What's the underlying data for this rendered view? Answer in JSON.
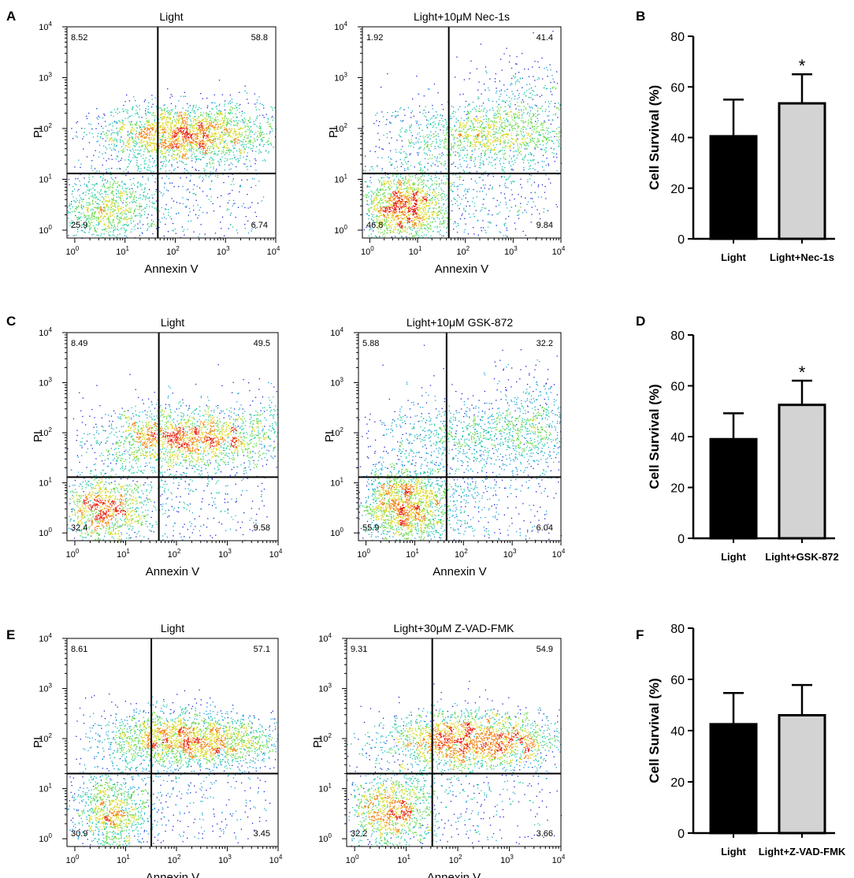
{
  "figure": {
    "colors": {
      "axis": "#000000",
      "bar_light": "#000000",
      "bar_treated": "#d3d3d3",
      "dot_low": "#1a22d8",
      "dot_mid": "#18c8a0",
      "dot_high": "#e82010"
    }
  },
  "chart_data": [
    {
      "panel": "A",
      "type": "scatter",
      "subtype": "flow-cytometry-density",
      "title": "Light",
      "xlabel": "Annexin V",
      "ylabel": "PI",
      "x_scale": "log",
      "y_scale": "log",
      "xlim": [
        0.7,
        10000
      ],
      "ylim": [
        0.7,
        10000
      ],
      "x_ticks": [
        {
          "base": "10",
          "exp": "0"
        },
        {
          "base": "10",
          "exp": "1"
        },
        {
          "base": "10",
          "exp": "2"
        },
        {
          "base": "10",
          "exp": "3"
        },
        {
          "base": "10",
          "exp": "4"
        }
      ],
      "y_ticks": [
        {
          "base": "10",
          "exp": "0"
        },
        {
          "base": "10",
          "exp": "1"
        },
        {
          "base": "10",
          "exp": "2"
        },
        {
          "base": "10",
          "exp": "3"
        },
        {
          "base": "10",
          "exp": "4"
        }
      ],
      "gate": {
        "x": 45,
        "y": 13
      },
      "quadrants": {
        "upper_left": "8.52",
        "upper_right": "58.8",
        "lower_left": "25.9",
        "lower_right": "6.74"
      },
      "populations": [
        {
          "cx": 4,
          "cy": 2.5,
          "sx": 0.22,
          "sy": 0.16,
          "weight": 0.25
        },
        {
          "cx": 60,
          "cy": 80,
          "sx": 0.3,
          "sy": 0.14,
          "weight": 0.3
        },
        {
          "cx": 250,
          "cy": 75,
          "sx": 0.35,
          "sy": 0.13,
          "weight": 0.25
        },
        {
          "cx": 1500,
          "cy": 85,
          "sx": 0.25,
          "sy": 0.14,
          "weight": 0.12
        },
        {
          "cx": 100,
          "cy": 3,
          "sx": 0.4,
          "sy": 0.3,
          "weight": 0.08
        }
      ]
    },
    {
      "panel": "A2",
      "type": "scatter",
      "subtype": "flow-cytometry-density",
      "title": "Light+10μM Nec-1s",
      "xlabel": "Annexin V",
      "ylabel": "PI",
      "x_scale": "log",
      "y_scale": "log",
      "xlim": [
        0.7,
        10000
      ],
      "ylim": [
        0.7,
        10000
      ],
      "x_ticks": [
        {
          "base": "10",
          "exp": "0"
        },
        {
          "base": "10",
          "exp": "1"
        },
        {
          "base": "10",
          "exp": "2"
        },
        {
          "base": "10",
          "exp": "3"
        },
        {
          "base": "10",
          "exp": "4"
        }
      ],
      "y_ticks": [
        {
          "base": "10",
          "exp": "0"
        },
        {
          "base": "10",
          "exp": "1"
        },
        {
          "base": "10",
          "exp": "2"
        },
        {
          "base": "10",
          "exp": "3"
        },
        {
          "base": "10",
          "exp": "4"
        }
      ],
      "gate": {
        "x": 45,
        "y": 13
      },
      "quadrants": {
        "upper_left": "1.92",
        "upper_right": "41.4",
        "lower_left": "46.8",
        "lower_right": "9.84"
      },
      "populations": [
        {
          "cx": 5,
          "cy": 2.8,
          "sx": 0.2,
          "sy": 0.16,
          "weight": 0.42
        },
        {
          "cx": 200,
          "cy": 80,
          "sx": 0.4,
          "sy": 0.14,
          "weight": 0.28
        },
        {
          "cx": 2500,
          "cy": 200,
          "sx": 0.3,
          "sy": 0.28,
          "weight": 0.14
        },
        {
          "cx": 150,
          "cy": 4,
          "sx": 0.45,
          "sy": 0.35,
          "weight": 0.12
        },
        {
          "cx": 20,
          "cy": 20,
          "sx": 0.3,
          "sy": 0.35,
          "weight": 0.04
        }
      ]
    },
    {
      "panel": "B",
      "type": "bar",
      "categories": [
        "Light",
        "Light+Nec-1s"
      ],
      "values": [
        40.5,
        53.5
      ],
      "errors": [
        14.5,
        11.5
      ],
      "significance": [
        "",
        "*"
      ],
      "ylabel": "Cell Survival (%)",
      "ylim": [
        0,
        80
      ],
      "yticks": [
        "0",
        "20",
        "40",
        "60",
        "80"
      ]
    },
    {
      "panel": "C",
      "type": "scatter",
      "subtype": "flow-cytometry-density",
      "title": "Light",
      "xlabel": "Annexin V",
      "ylabel": "PI",
      "x_scale": "log",
      "y_scale": "log",
      "xlim": [
        0.7,
        10000
      ],
      "ylim": [
        0.7,
        10000
      ],
      "x_ticks": [
        {
          "base": "10",
          "exp": "0"
        },
        {
          "base": "10",
          "exp": "1"
        },
        {
          "base": "10",
          "exp": "2"
        },
        {
          "base": "10",
          "exp": "3"
        },
        {
          "base": "10",
          "exp": "4"
        }
      ],
      "y_ticks": [
        {
          "base": "10",
          "exp": "0"
        },
        {
          "base": "10",
          "exp": "1"
        },
        {
          "base": "10",
          "exp": "2"
        },
        {
          "base": "10",
          "exp": "3"
        },
        {
          "base": "10",
          "exp": "4"
        }
      ],
      "gate": {
        "x": 45,
        "y": 13
      },
      "quadrants": {
        "upper_left": "8.49",
        "upper_right": "49.5",
        "lower_left": "32.4",
        "lower_right": "9.58"
      },
      "populations": [
        {
          "cx": 4,
          "cy": 3,
          "sx": 0.2,
          "sy": 0.16,
          "weight": 0.3
        },
        {
          "cx": 70,
          "cy": 80,
          "sx": 0.3,
          "sy": 0.15,
          "weight": 0.28
        },
        {
          "cx": 400,
          "cy": 75,
          "sx": 0.4,
          "sy": 0.13,
          "weight": 0.22
        },
        {
          "cx": 3500,
          "cy": 120,
          "sx": 0.25,
          "sy": 0.2,
          "weight": 0.1
        },
        {
          "cx": 100,
          "cy": 4,
          "sx": 0.45,
          "sy": 0.35,
          "weight": 0.1
        }
      ]
    },
    {
      "panel": "C2",
      "type": "scatter",
      "subtype": "flow-cytometry-density",
      "title": "Light+10μM GSK-872",
      "xlabel": "Annexin V",
      "ylabel": "PI",
      "x_scale": "log",
      "y_scale": "log",
      "xlim": [
        0.7,
        10000
      ],
      "ylim": [
        0.7,
        10000
      ],
      "x_ticks": [
        {
          "base": "10",
          "exp": "0"
        },
        {
          "base": "10",
          "exp": "1"
        },
        {
          "base": "10",
          "exp": "2"
        },
        {
          "base": "10",
          "exp": "3"
        },
        {
          "base": "10",
          "exp": "4"
        }
      ],
      "y_ticks": [
        {
          "base": "10",
          "exp": "0"
        },
        {
          "base": "10",
          "exp": "1"
        },
        {
          "base": "10",
          "exp": "2"
        },
        {
          "base": "10",
          "exp": "3"
        },
        {
          "base": "10",
          "exp": "4"
        }
      ],
      "gate": {
        "x": 45,
        "y": 13
      },
      "quadrants": {
        "upper_left": "5.88",
        "upper_right": "32.2",
        "lower_left": "55.9",
        "lower_right": "6.04"
      },
      "populations": [
        {
          "cx": 6,
          "cy": 3.5,
          "sx": 0.22,
          "sy": 0.18,
          "weight": 0.5
        },
        {
          "cx": 300,
          "cy": 90,
          "sx": 0.45,
          "sy": 0.16,
          "weight": 0.22
        },
        {
          "cx": 3500,
          "cy": 180,
          "sx": 0.25,
          "sy": 0.25,
          "weight": 0.12
        },
        {
          "cx": 200,
          "cy": 4,
          "sx": 0.45,
          "sy": 0.35,
          "weight": 0.1
        },
        {
          "cx": 25,
          "cy": 25,
          "sx": 0.3,
          "sy": 0.35,
          "weight": 0.06
        }
      ]
    },
    {
      "panel": "D",
      "type": "bar",
      "categories": [
        "Light",
        "Light+GSK-872"
      ],
      "values": [
        39,
        52.5
      ],
      "errors": [
        10.2,
        9.5
      ],
      "significance": [
        "",
        "*"
      ],
      "ylabel": "Cell Survival (%)",
      "ylim": [
        0,
        80
      ],
      "yticks": [
        "0",
        "20",
        "40",
        "60",
        "80"
      ]
    },
    {
      "panel": "E",
      "type": "scatter",
      "subtype": "flow-cytometry-density",
      "title": "Light",
      "xlabel": "Annexin V",
      "ylabel": "PI",
      "x_scale": "log",
      "y_scale": "log",
      "xlim": [
        0.7,
        10000
      ],
      "ylim": [
        0.7,
        10000
      ],
      "x_ticks": [
        {
          "base": "10",
          "exp": "0"
        },
        {
          "base": "10",
          "exp": "1"
        },
        {
          "base": "10",
          "exp": "2"
        },
        {
          "base": "10",
          "exp": "3"
        },
        {
          "base": "10",
          "exp": "4"
        }
      ],
      "y_ticks": [
        {
          "base": "10",
          "exp": "0"
        },
        {
          "base": "10",
          "exp": "1"
        },
        {
          "base": "10",
          "exp": "2"
        },
        {
          "base": "10",
          "exp": "3"
        },
        {
          "base": "10",
          "exp": "4"
        }
      ],
      "gate": {
        "x": 32,
        "y": 20
      },
      "quadrants": {
        "upper_left": "8.61",
        "upper_right": "57.1",
        "lower_left": "30.9",
        "lower_right": "3.45"
      },
      "populations": [
        {
          "cx": 5,
          "cy": 3.2,
          "sx": 0.18,
          "sy": 0.18,
          "weight": 0.28
        },
        {
          "cx": 60,
          "cy": 110,
          "sx": 0.3,
          "sy": 0.14,
          "weight": 0.3
        },
        {
          "cx": 300,
          "cy": 90,
          "sx": 0.4,
          "sy": 0.13,
          "weight": 0.25
        },
        {
          "cx": 1200,
          "cy": 85,
          "sx": 0.25,
          "sy": 0.12,
          "weight": 0.1
        },
        {
          "cx": 80,
          "cy": 6,
          "sx": 0.45,
          "sy": 0.35,
          "weight": 0.07
        }
      ]
    },
    {
      "panel": "E2",
      "type": "scatter",
      "subtype": "flow-cytometry-density",
      "title": "Light+30μM Z-VAD-FMK",
      "xlabel": "Annexin V",
      "ylabel": "PI",
      "x_scale": "log",
      "y_scale": "log",
      "xlim": [
        0.7,
        10000
      ],
      "ylim": [
        0.7,
        10000
      ],
      "x_ticks": [
        {
          "base": "10",
          "exp": "0"
        },
        {
          "base": "10",
          "exp": "1"
        },
        {
          "base": "10",
          "exp": "2"
        },
        {
          "base": "10",
          "exp": "3"
        },
        {
          "base": "10",
          "exp": "4"
        }
      ],
      "y_ticks": [
        {
          "base": "10",
          "exp": "0"
        },
        {
          "base": "10",
          "exp": "1"
        },
        {
          "base": "10",
          "exp": "2"
        },
        {
          "base": "10",
          "exp": "3"
        },
        {
          "base": "10",
          "exp": "4"
        }
      ],
      "gate": {
        "x": 32,
        "y": 20
      },
      "quadrants": {
        "upper_left": "9.31",
        "upper_right": "54.9",
        "lower_left": "32.2",
        "lower_right": "3.66"
      },
      "populations": [
        {
          "cx": 5,
          "cy": 3.2,
          "sx": 0.18,
          "sy": 0.18,
          "weight": 0.3
        },
        {
          "cx": 70,
          "cy": 100,
          "sx": 0.3,
          "sy": 0.14,
          "weight": 0.28
        },
        {
          "cx": 300,
          "cy": 95,
          "sx": 0.4,
          "sy": 0.13,
          "weight": 0.25
        },
        {
          "cx": 1200,
          "cy": 85,
          "sx": 0.25,
          "sy": 0.12,
          "weight": 0.1
        },
        {
          "cx": 80,
          "cy": 6,
          "sx": 0.45,
          "sy": 0.35,
          "weight": 0.07
        }
      ]
    },
    {
      "panel": "F",
      "type": "bar",
      "categories": [
        "Light",
        "Light+Z-VAD-FMK"
      ],
      "values": [
        42.5,
        46
      ],
      "errors": [
        12.2,
        11.8
      ],
      "significance": [
        "",
        ""
      ],
      "ylabel": "Cell Survival (%)",
      "ylim": [
        0,
        80
      ],
      "yticks": [
        "0",
        "20",
        "40",
        "60",
        "80"
      ]
    }
  ],
  "panel_letters": [
    "A",
    "B",
    "C",
    "D",
    "E",
    "F"
  ]
}
